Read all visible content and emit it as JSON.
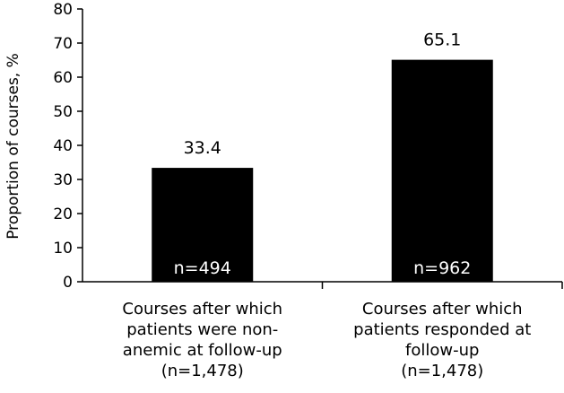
{
  "chart_data": {
    "type": "bar",
    "title": "",
    "xlabel": "",
    "ylabel": "Proportion of courses, %",
    "ylim": [
      0,
      80
    ],
    "yticks": [
      0,
      10,
      20,
      30,
      40,
      50,
      60,
      70,
      80
    ],
    "categories": [
      {
        "lines": [
          "Courses after which",
          "patients were non-",
          "anemic at follow-up",
          "(n=1,478)"
        ],
        "value": 33.4,
        "value_label": "33.4",
        "n_label": "n=494"
      },
      {
        "lines": [
          "Courses after which",
          "patients responded at",
          "follow-up",
          "(n=1,478)"
        ],
        "value": 65.1,
        "value_label": "65.1",
        "n_label": "n=962"
      }
    ],
    "grid": false,
    "legend": "none",
    "colors": {
      "bar": "#000000",
      "axis": "#000000",
      "n_label": "#ffffff"
    }
  }
}
